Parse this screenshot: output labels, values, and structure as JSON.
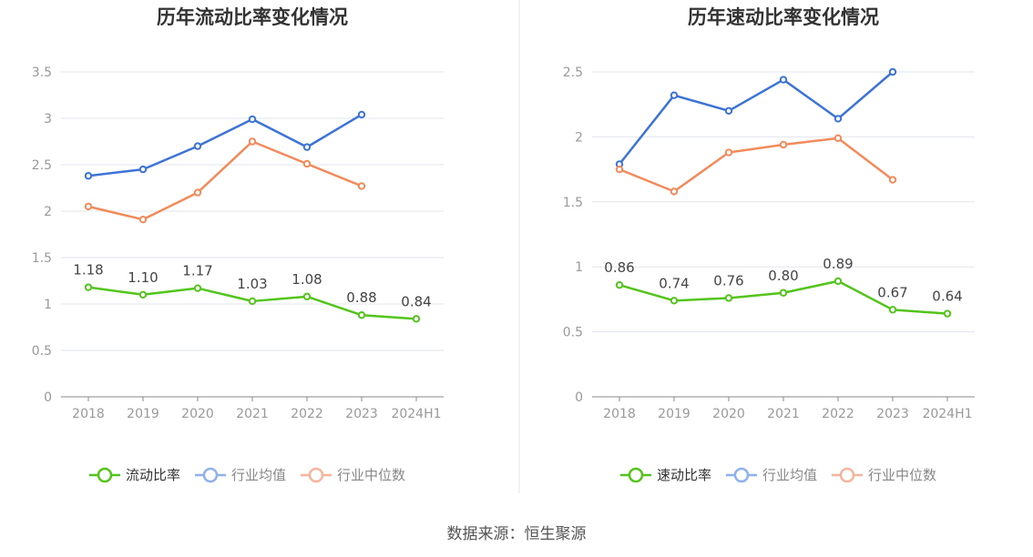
{
  "colors": {
    "own": "#52c41a",
    "industry_avg": "#3b73d6",
    "industry_median": "#f28a5a",
    "legend_avg": "#8fb0ee",
    "legend_median": "#f7b49a",
    "axis": "#888888",
    "grid": "#e3e6ee",
    "tick_text": "#999999",
    "title": "#333333",
    "divider": "#e6e6e6"
  },
  "chart_data": [
    {
      "type": "line",
      "title": "历年流动比率变化情况",
      "categories": [
        "2018",
        "2019",
        "2020",
        "2021",
        "2022",
        "2023",
        "2024H1"
      ],
      "ylim": [
        0,
        3.5
      ],
      "yticks": [
        "0",
        "0.5",
        "1",
        "1.5",
        "2",
        "2.5",
        "3",
        "3.5"
      ],
      "grid": true,
      "legend_position": "bottom-center",
      "series": [
        {
          "name": "流动比率",
          "key": "own",
          "values": [
            1.18,
            1.1,
            1.17,
            1.03,
            1.08,
            0.88,
            0.84
          ],
          "labels": [
            "1.18",
            "1.10",
            "1.17",
            "1.03",
            "1.08",
            "0.88",
            "0.84"
          ]
        },
        {
          "name": "行业均值",
          "key": "industry_avg",
          "values": [
            2.38,
            2.45,
            2.7,
            2.99,
            2.69,
            3.04,
            null
          ]
        },
        {
          "name": "行业中位数",
          "key": "industry_median",
          "values": [
            2.05,
            1.91,
            2.2,
            2.75,
            2.51,
            2.27,
            null
          ]
        }
      ]
    },
    {
      "type": "line",
      "title": "历年速动比率变化情况",
      "categories": [
        "2018",
        "2019",
        "2020",
        "2021",
        "2022",
        "2023",
        "2024H1"
      ],
      "ylim": [
        0,
        2.5
      ],
      "yticks": [
        "0",
        "0.5",
        "1",
        "1.5",
        "2",
        "2.5"
      ],
      "grid": true,
      "legend_position": "bottom-center",
      "series": [
        {
          "name": "速动比率",
          "key": "own",
          "values": [
            0.86,
            0.74,
            0.76,
            0.8,
            0.89,
            0.67,
            0.64
          ],
          "labels": [
            "0.86",
            "0.74",
            "0.76",
            "0.80",
            "0.89",
            "0.67",
            "0.64"
          ]
        },
        {
          "name": "行业均值",
          "key": "industry_avg",
          "values": [
            1.79,
            2.32,
            2.2,
            2.44,
            2.14,
            2.5,
            null
          ]
        },
        {
          "name": "行业中位数",
          "key": "industry_median",
          "values": [
            1.75,
            1.58,
            1.88,
            1.94,
            1.99,
            1.67,
            null
          ]
        }
      ]
    }
  ],
  "footer": {
    "source": "数据来源：恒生聚源"
  }
}
